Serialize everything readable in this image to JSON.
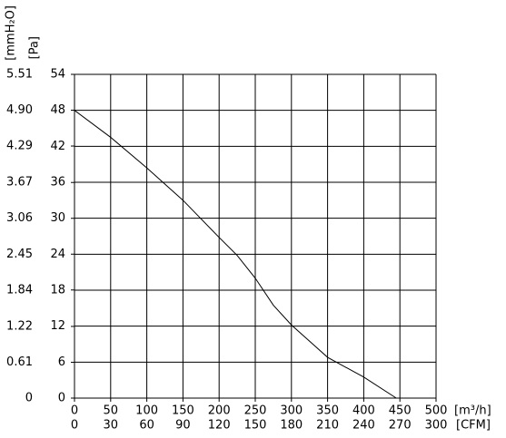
{
  "chart_data": {
    "type": "line",
    "x_label": "[m³/h]",
    "x2_label": "[CFM]",
    "y_label": "[Pa]",
    "y2_label": "[mmH₂O]",
    "x": [
      0,
      50,
      100,
      150,
      200,
      225,
      250,
      275,
      300,
      350,
      400,
      445
    ],
    "series": [
      {
        "color": "#000000",
        "values": [
          48,
          43.5,
          38.4,
          33,
          26.8,
          23.8,
          20,
          15.5,
          12.2,
          6.8,
          3.5,
          0
        ]
      }
    ],
    "xlim": [
      0,
      500
    ],
    "xticks": [
      0,
      50,
      100,
      150,
      200,
      250,
      300,
      350,
      400,
      450,
      500
    ],
    "x2lim": [
      0,
      300
    ],
    "x2ticks": [
      0,
      30,
      60,
      90,
      120,
      150,
      180,
      210,
      240,
      270,
      300
    ],
    "ylim": [
      0,
      54
    ],
    "yticks": [
      0,
      6,
      12,
      18,
      24,
      30,
      36,
      42,
      48,
      54
    ],
    "y2lim": [
      0,
      5.51
    ],
    "y2ticks": [
      0,
      0.61,
      1.22,
      1.84,
      2.45,
      3.06,
      3.67,
      4.29,
      {
        "value": 4.9,
        "label": "4.90"
      },
      5.51
    ],
    "grid": true
  }
}
